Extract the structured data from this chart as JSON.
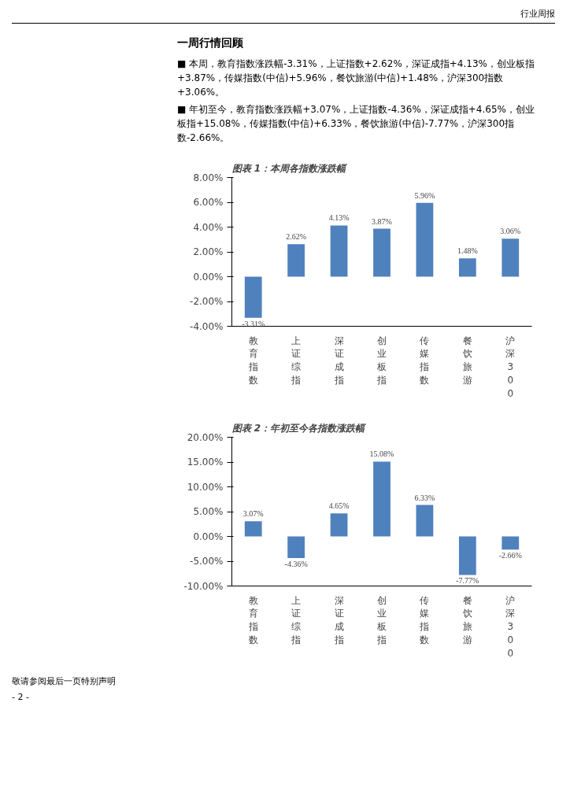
{
  "chart_data": [
    {
      "type": "bar",
      "title": "图表 1：本周各指数涨跌幅",
      "annotations": [
        "行业周报",
        "一周行情回顾",
        "■ 本周，教育指数涨跌幅-3.31%，上证指数+2.62%，深证成指+4.13%，创业板指+3.87%，传媒指数(中信)+5.96%，餐饮旅游(中信)+1.48%，沪深300指数+3.06%。",
        "■ 年初至今，教育指数涨跌幅+3.07%，上证指数-4.36%，深证成指+4.65%，创业板指+15.08%，传媒指数(中信)+6.33%，餐饮旅游(中信)-7.77%，沪深300指数-2.66%。"
      ],
      "categories": [
        "教育指数",
        "上证综指",
        "深证成指",
        "创业板指",
        "传媒指数",
        "餐饮旅游",
        "沪深300"
      ],
      "values": [
        -3.31,
        2.62,
        4.13,
        3.87,
        5.96,
        1.48,
        3.06
      ],
      "value_labels": [
        "-3.31%",
        "2.62%",
        "4.13%",
        "3.87%",
        "5.96%",
        "1.48%",
        "3.06%"
      ],
      "color": "#4f81bd",
      "ylim": [
        -4,
        8
      ],
      "yticks": [
        {
          "value": -4,
          "label": "-4.00%"
        },
        {
          "value": -2,
          "label": "-2.00%"
        },
        {
          "value": 0,
          "label": "0.00%"
        },
        {
          "value": 2,
          "label": "2.00%"
        },
        {
          "value": 4,
          "label": "4.00%"
        },
        {
          "value": 6,
          "label": "6.00%"
        },
        {
          "value": 8,
          "label": "8.00%"
        }
      ]
    },
    {
      "type": "bar",
      "title": "图表 2：年初至今各指数涨跌幅",
      "annotations": [
        "敬请参阅最后一页特别声明",
        "- 2 -"
      ],
      "categories": [
        "教育指数",
        "上证综指",
        "深证成指",
        "创业板指",
        "传媒指数",
        "餐饮旅游",
        "沪深300"
      ],
      "values": [
        3.07,
        -4.36,
        4.65,
        15.08,
        6.33,
        -7.77,
        -2.66
      ],
      "value_labels": [
        "3.07%",
        "-4.36%",
        "4.65%",
        "15.08%",
        "6.33%",
        "-7.77%",
        "-2.66%"
      ],
      "color": "#4f81bd",
      "ylim": [
        -10,
        20
      ],
      "yticks": [
        {
          "value": -10,
          "label": "-10.00%"
        },
        {
          "value": -5,
          "label": "-5.00%"
        },
        {
          "value": 0,
          "label": "0.00%"
        },
        {
          "value": 5,
          "label": "5.00%"
        },
        {
          "value": 10,
          "label": "10.00%"
        },
        {
          "value": 15,
          "label": "15.00%"
        },
        {
          "value": 20,
          "label": "20.00%"
        }
      ]
    }
  ]
}
